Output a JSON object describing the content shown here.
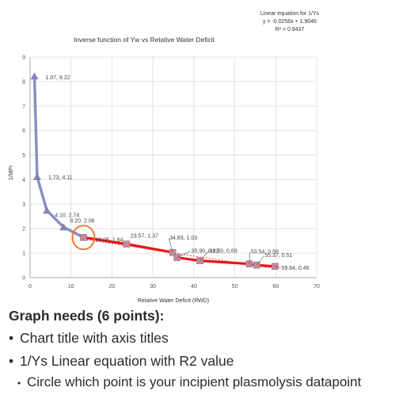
{
  "chart_data": {
    "type": "line",
    "title": "Inverse function of Yw vs Relative Water Deficit",
    "xlabel": "Relative Water Deficit (RWD)",
    "ylabel": "1/MPI",
    "xlim": [
      0,
      70
    ],
    "ylim": [
      0,
      9
    ],
    "xticks": [
      "0",
      "10",
      "20",
      "30",
      "40",
      "50",
      "60",
      "70"
    ],
    "yticks": [
      "0",
      "1",
      "2",
      "3",
      "4",
      "5",
      "6",
      "7",
      "8",
      "9"
    ],
    "grid": true,
    "series": [
      {
        "color": "#8a8fbf",
        "points": [
          [
            1.07,
            8.22
          ],
          [
            1.73,
            4.11
          ],
          [
            4.1,
            2.74
          ],
          [
            8.2,
            2.06
          ],
          [
            13.05,
            1.64
          ]
        ],
        "labels": [
          "1.07, 8.22",
          "1.73, 4.11",
          "4.10, 2.74",
          "8.20, 2.06",
          "13.05, 1.64"
        ]
      },
      {
        "color": "#ee1111",
        "points": [
          [
            13.05,
            1.64
          ],
          [
            23.57,
            1.37
          ],
          [
            34.83,
            1.03
          ],
          [
            35.9,
            0.82
          ],
          [
            41.5,
            0.69
          ],
          [
            53.54,
            0.56
          ],
          [
            55.37,
            0.51
          ],
          [
            59.84,
            0.46
          ]
        ],
        "labels": [
          "",
          "23.57, 1.37",
          "34.83, 1.03",
          "35.90, 0.82",
          "41.50, 0.69",
          "53.54, 0.56",
          "55.37, 0.51",
          "59.84, 0.46"
        ]
      }
    ],
    "trendline": {
      "equation_title": "Linear equation for 1/Ys",
      "equation": "y = -0.0256x + 1.9046",
      "r2": "R² = 0.9437",
      "slope": -0.0256,
      "intercept": 1.9046,
      "x_range": [
        13.05,
        59.84
      ],
      "color": "#e06060"
    },
    "circled_point": [
      13.05,
      1.64
    ],
    "circle_color": "#f07020"
  },
  "notes": {
    "heading": "Graph needs (6 points):",
    "items": [
      "Chart title with axis titles",
      "1/Ys Linear equation with R2 value",
      "Circle which point is your incipient plasmolysis datapoint"
    ],
    "bullet_big": "•",
    "bullet_small": "•"
  }
}
